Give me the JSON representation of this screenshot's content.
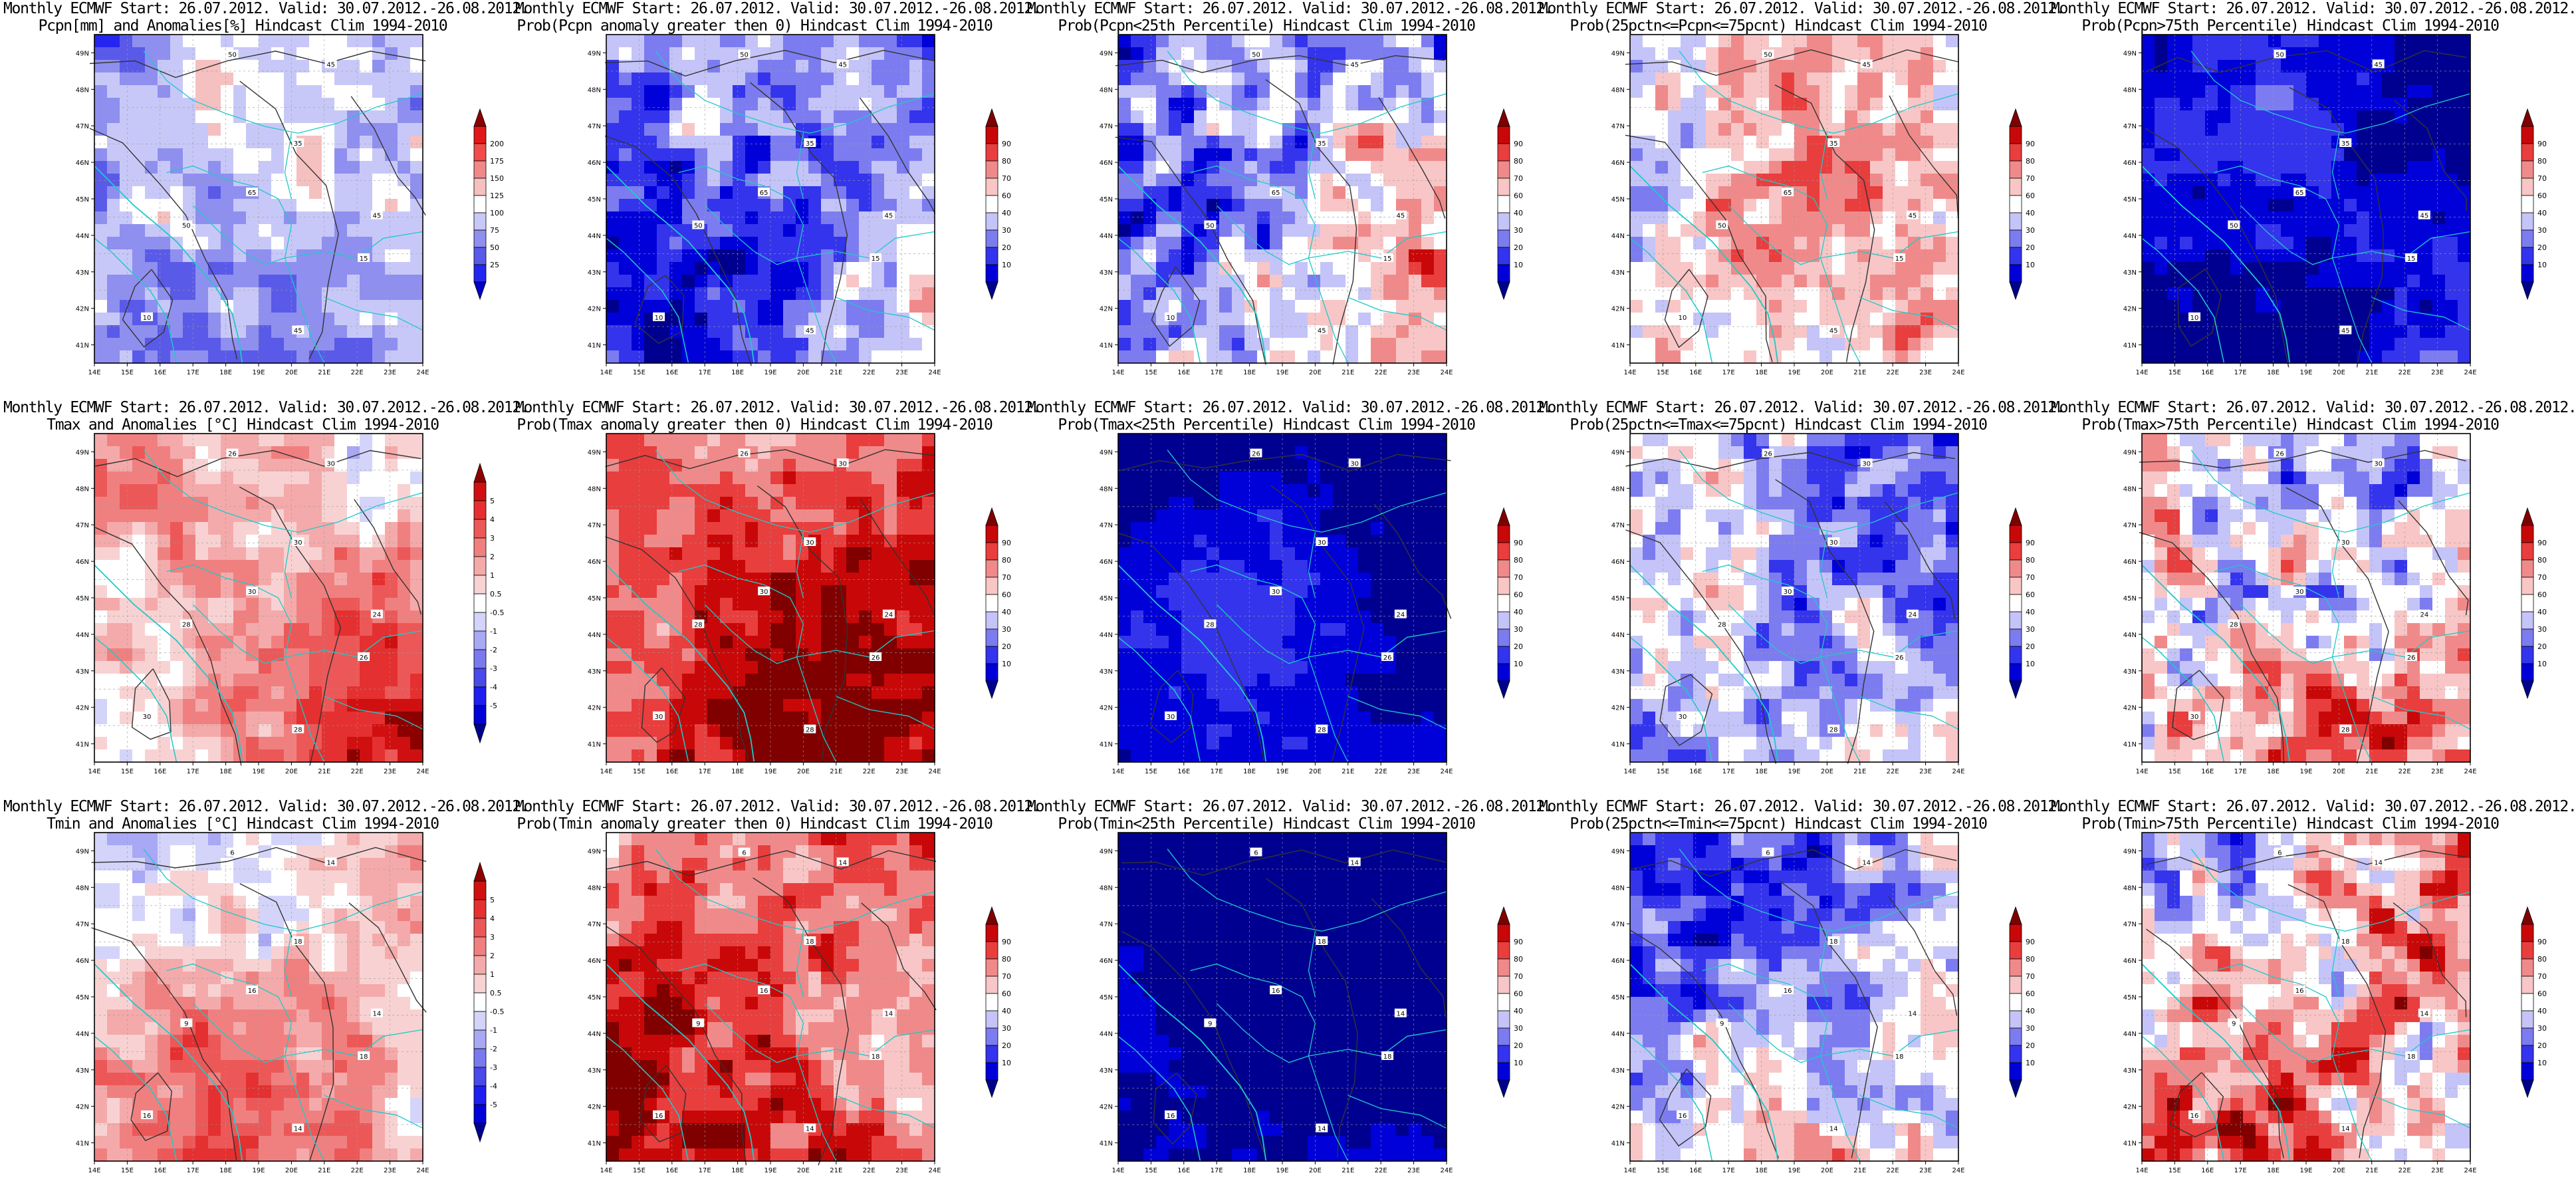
{
  "colors": {
    "coast": "#1fc9c9",
    "contour": "#333333",
    "label_box": "#ffffff"
  },
  "axes": {
    "lon_labels": [
      "14E",
      "15E",
      "16E",
      "17E",
      "18E",
      "19E",
      "20E",
      "21E",
      "22E",
      "23E",
      "24E"
    ],
    "lat_labels": [
      "41N",
      "42N",
      "43N",
      "44N",
      "45N",
      "46N",
      "47N",
      "48N",
      "49N"
    ]
  },
  "colorbars": {
    "precip": {
      "labels": [
        "25",
        "50",
        "75",
        "100",
        "125",
        "150",
        "175",
        "200"
      ],
      "colors": [
        "#0000c8",
        "#2525f0",
        "#5a5ae8",
        "#8f8ff0",
        "#c8c8f8",
        "#ffffff",
        "#f5c0c0",
        "#f08888",
        "#f04c4c",
        "#e01818",
        "#8c0000"
      ]
    },
    "anom": {
      "labels": [
        "-5",
        "-4",
        "-3",
        "-2",
        "-1",
        "-0.5",
        "0.5",
        "1",
        "2",
        "3",
        "4",
        "5"
      ],
      "colors": [
        "#000090",
        "#0000d8",
        "#1e1ef0",
        "#4a4ae8",
        "#7a7aee",
        "#a8a8f4",
        "#d4d4fa",
        "#ffffff",
        "#f8d2d2",
        "#f4aaaa",
        "#f08080",
        "#ec5858",
        "#e43030",
        "#d01010",
        "#8c0000"
      ]
    },
    "prob": {
      "labels": [
        "10",
        "20",
        "30",
        "40",
        "60",
        "70",
        "80",
        "90"
      ],
      "colors": [
        "#000090",
        "#0000d8",
        "#3434ec",
        "#7c7cf0",
        "#c4c4f8",
        "#ffffff",
        "#f8c6c6",
        "#f08a8a",
        "#e83e3e",
        "#c80808",
        "#800000"
      ]
    }
  },
  "panels": [
    {
      "id": "p-pcpn-anom",
      "title1": "Monthly ECMWF Start: 26.07.2012. Valid: 30.07.2012.-26.08.2012.",
      "title2": "Pcpn[mm] and Anomalies[%] Hindcast Clim 1994-2010",
      "scale": "precip",
      "level": 0.38,
      "patchy": 0.4,
      "contours": [
        "50",
        "45",
        "35",
        "45",
        "50",
        "15",
        "10",
        "45",
        "65"
      ]
    },
    {
      "id": "p-pcpn-gt0",
      "title1": "Monthly ECMWF Start: 26.07.2012. Valid: 30.07.2012.-26.08.2012.",
      "title2": "Prob(Pcpn anomaly greater then 0) Hindcast Clim 1994-2010",
      "scale": "prob",
      "level": 0.32,
      "patchy": 0.45,
      "contours": [
        "50",
        "45",
        "35",
        "45",
        "50",
        "15",
        "10",
        "45",
        "65"
      ]
    },
    {
      "id": "p-pcpn-lt25",
      "title1": "Monthly ECMWF Start: 26.07.2012. Valid: 30.07.2012.-26.08.2012.",
      "title2": "Prob(Pcpn<25th Percentile) Hindcast Clim 1994-2010",
      "scale": "prob",
      "level": 0.4,
      "patchy": 0.6,
      "contours": [
        "50",
        "45",
        "35",
        "45",
        "50",
        "15",
        "10",
        "45",
        "65"
      ]
    },
    {
      "id": "p-pcpn-mid",
      "title1": "Monthly ECMWF Start: 26.07.2012. Valid: 30.07.2012.-26.08.2012.",
      "title2": "Prob(25pctn<=Pcpn<=75pcnt) Hindcast Clim 1994-2010",
      "scale": "prob",
      "level": 0.5,
      "patchy": 0.5,
      "contours": [
        "50",
        "45",
        "35",
        "45",
        "50",
        "15",
        "10",
        "45",
        "65"
      ]
    },
    {
      "id": "p-pcpn-gt75",
      "title1": "Monthly ECMWF Start: 26.07.2012. Valid: 30.07.2012.-26.08.2012.",
      "title2": "Prob(Pcpn>75th Percentile) Hindcast Clim 1994-2010",
      "scale": "prob",
      "level": 0.1,
      "patchy": 0.25,
      "contours": [
        "50",
        "45",
        "35",
        "45",
        "50",
        "15",
        "10",
        "45",
        "65"
      ]
    },
    {
      "id": "p-tmax-anom",
      "title1": "Monthly ECMWF Start: 26.07.2012. Valid: 30.07.2012.-26.08.2012.",
      "title2": "Tmax and Anomalies [°C] Hindcast Clim 1994-2010",
      "scale": "anom",
      "level": 0.66,
      "patchy": 0.35,
      "contours": [
        "26",
        "30",
        "30",
        "24",
        "28",
        "26",
        "30",
        "28",
        "30"
      ]
    },
    {
      "id": "p-tmax-gt0",
      "title1": "Monthly ECMWF Start: 26.07.2012. Valid: 30.07.2012.-26.08.2012.",
      "title2": "Prob(Tmax anomaly greater then 0) Hindcast Clim 1994-2010",
      "scale": "prob",
      "level": 0.78,
      "patchy": 0.35,
      "contours": [
        "26",
        "30",
        "30",
        "24",
        "28",
        "26",
        "30",
        "28",
        "30"
      ]
    },
    {
      "id": "p-tmax-lt25",
      "title1": "Monthly ECMWF Start: 26.07.2012. Valid: 30.07.2012.-26.08.2012.",
      "title2": "Prob(Tmax<25th Percentile) Hindcast Clim 1994-2010",
      "scale": "prob",
      "level": 0.05,
      "patchy": 0.15,
      "contours": [
        "26",
        "30",
        "30",
        "24",
        "28",
        "26",
        "30",
        "28",
        "30"
      ]
    },
    {
      "id": "p-tmax-mid",
      "title1": "Monthly ECMWF Start: 26.07.2012. Valid: 30.07.2012.-26.08.2012.",
      "title2": "Prob(25pctn<=Tmax<=75pcnt) Hindcast Clim 1994-2010",
      "scale": "prob",
      "level": 0.4,
      "patchy": 0.55,
      "contours": [
        "26",
        "30",
        "30",
        "24",
        "28",
        "26",
        "30",
        "28",
        "30"
      ]
    },
    {
      "id": "p-tmax-gt75",
      "title1": "Monthly ECMWF Start: 26.07.2012. Valid: 30.07.2012.-26.08.2012.",
      "title2": "Prob(Tmax>75th Percentile) Hindcast Clim 1994-2010",
      "scale": "prob",
      "level": 0.55,
      "patchy": 0.65,
      "contours": [
        "26",
        "30",
        "30",
        "24",
        "28",
        "26",
        "30",
        "28",
        "30"
      ]
    },
    {
      "id": "p-tmin-anom",
      "title1": "Monthly ECMWF Start: 26.07.2012. Valid: 30.07.2012.-26.08.2012.",
      "title2": "Tmin and Anomalies [°C] Hindcast Clim 1994-2010",
      "scale": "anom",
      "level": 0.58,
      "patchy": 0.35,
      "contours": [
        "6",
        "14",
        "18",
        "14",
        "9",
        "18",
        "16",
        "14",
        "16"
      ]
    },
    {
      "id": "p-tmin-gt0",
      "title1": "Monthly ECMWF Start: 26.07.2012. Valid: 30.07.2012.-26.08.2012.",
      "title2": "Prob(Tmin anomaly greater then 0) Hindcast Clim 1994-2010",
      "scale": "prob",
      "level": 0.75,
      "patchy": 0.4,
      "contours": [
        "6",
        "14",
        "18",
        "14",
        "9",
        "18",
        "16",
        "14",
        "16"
      ]
    },
    {
      "id": "p-tmin-lt25",
      "title1": "Monthly ECMWF Start: 26.07.2012. Valid: 30.07.2012.-26.08.2012.",
      "title2": "Prob(Tmin<25th Percentile) Hindcast Clim 1994-2010",
      "scale": "prob",
      "level": 0.06,
      "patchy": 0.2,
      "contours": [
        "6",
        "14",
        "18",
        "14",
        "9",
        "18",
        "16",
        "14",
        "16"
      ]
    },
    {
      "id": "p-tmin-mid",
      "title1": "Monthly ECMWF Start: 26.07.2012. Valid: 30.07.2012.-26.08.2012.",
      "title2": "Prob(25pctn<=Tmin<=75pcnt) Hindcast Clim 1994-2010",
      "scale": "prob",
      "level": 0.42,
      "patchy": 0.55,
      "contours": [
        "6",
        "14",
        "18",
        "14",
        "9",
        "18",
        "16",
        "14",
        "16"
      ]
    },
    {
      "id": "p-tmin-gt75",
      "title1": "Monthly ECMWF Start: 26.07.2012. Valid: 30.07.2012.-26.08.2012.",
      "title2": "Prob(Tmin>75th Percentile) Hindcast Clim 1994-2010",
      "scale": "prob",
      "level": 0.6,
      "patchy": 0.65,
      "contours": [
        "6",
        "14",
        "18",
        "14",
        "9",
        "18",
        "16",
        "14",
        "16"
      ]
    }
  ]
}
